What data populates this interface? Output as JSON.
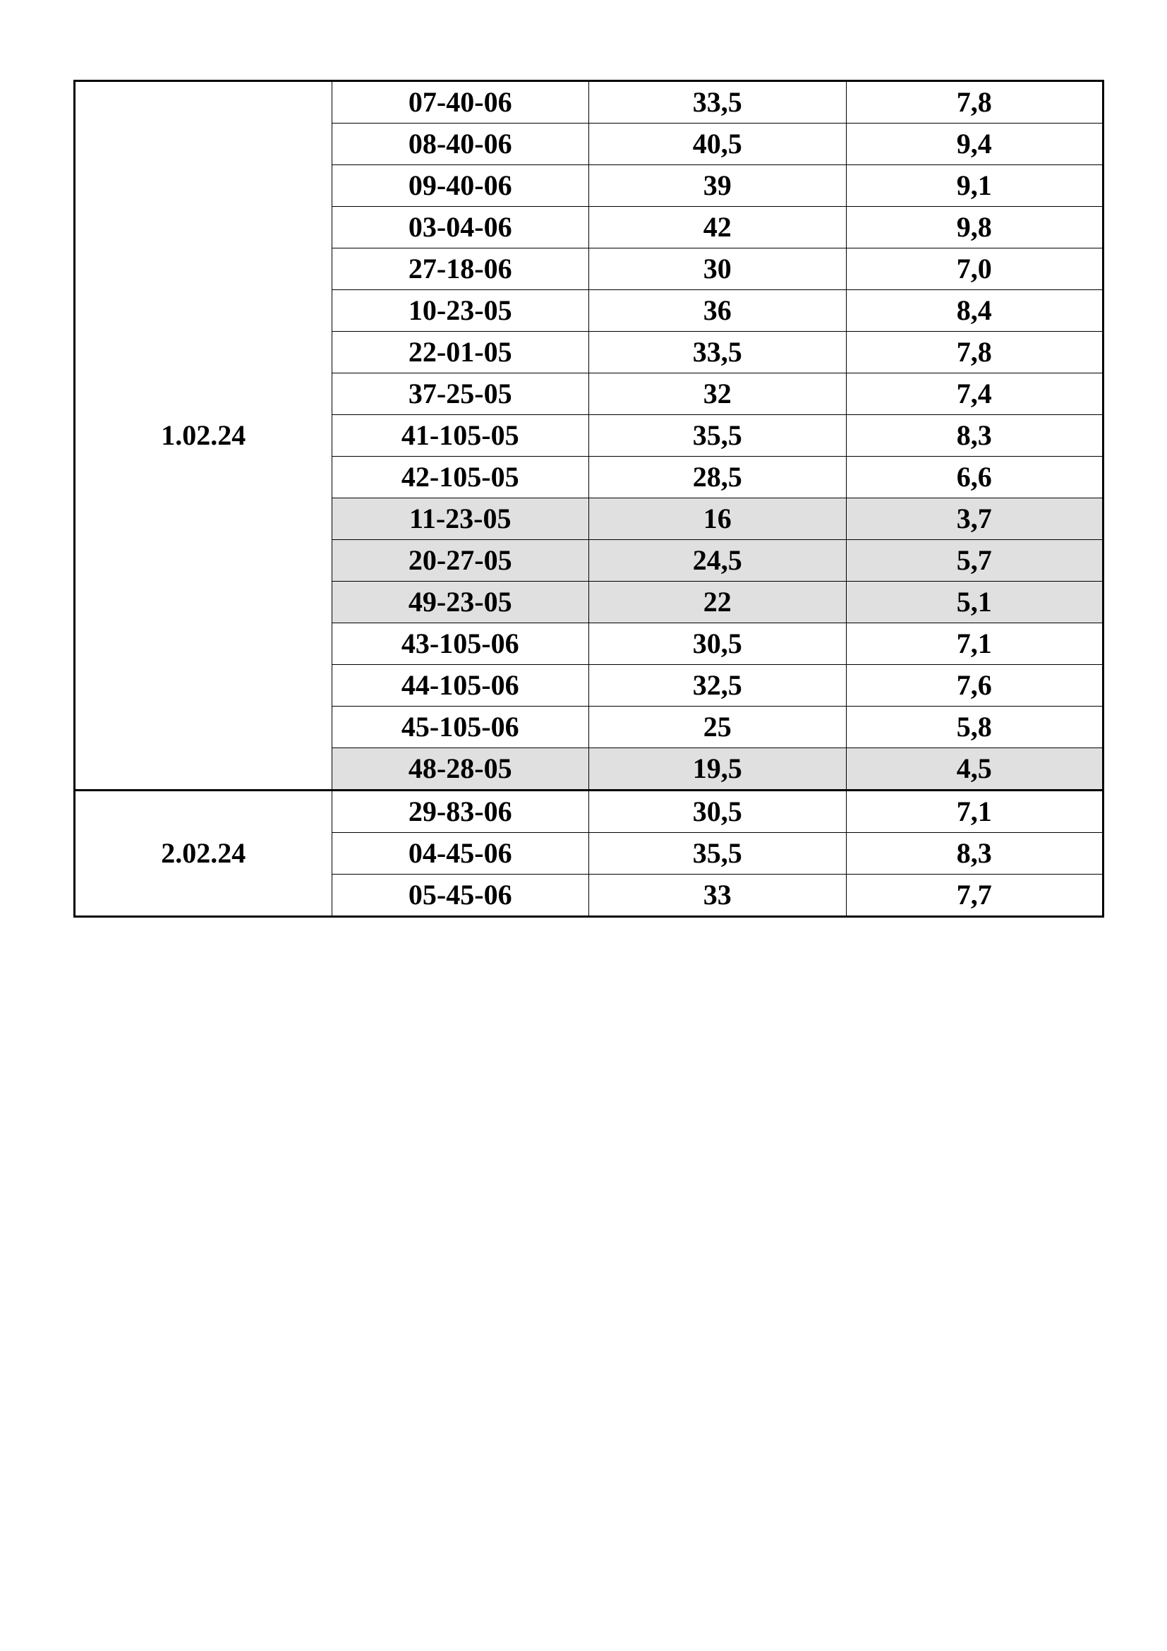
{
  "colors": {
    "shaded_row": "#e0e0e0",
    "border": "#000000"
  },
  "groups": [
    {
      "date": "1.02.24",
      "rows": [
        {
          "code": "07-40-06",
          "value": "33,5",
          "ratio": "7,8",
          "shaded": false
        },
        {
          "code": "08-40-06",
          "value": "40,5",
          "ratio": "9,4",
          "shaded": false
        },
        {
          "code": "09-40-06",
          "value": "39",
          "ratio": "9,1",
          "shaded": false
        },
        {
          "code": "03-04-06",
          "value": "42",
          "ratio": "9,8",
          "shaded": false
        },
        {
          "code": "27-18-06",
          "value": "30",
          "ratio": "7,0",
          "shaded": false
        },
        {
          "code": "10-23-05",
          "value": "36",
          "ratio": "8,4",
          "shaded": false
        },
        {
          "code": "22-01-05",
          "value": "33,5",
          "ratio": "7,8",
          "shaded": false
        },
        {
          "code": "37-25-05",
          "value": "32",
          "ratio": "7,4",
          "shaded": false
        },
        {
          "code": "41-105-05",
          "value": "35,5",
          "ratio": "8,3",
          "shaded": false
        },
        {
          "code": "42-105-05",
          "value": "28,5",
          "ratio": "6,6",
          "shaded": false
        },
        {
          "code": "11-23-05",
          "value": "16",
          "ratio": "3,7",
          "shaded": true
        },
        {
          "code": "20-27-05",
          "value": "24,5",
          "ratio": "5,7",
          "shaded": true
        },
        {
          "code": "49-23-05",
          "value": "22",
          "ratio": "5,1",
          "shaded": true
        },
        {
          "code": "43-105-06",
          "value": "30,5",
          "ratio": "7,1",
          "shaded": false
        },
        {
          "code": "44-105-06",
          "value": "32,5",
          "ratio": "7,6",
          "shaded": false
        },
        {
          "code": "45-105-06",
          "value": "25",
          "ratio": "5,8",
          "shaded": false
        },
        {
          "code": "48-28-05",
          "value": "19,5",
          "ratio": "4,5",
          "shaded": true
        }
      ]
    },
    {
      "date": "2.02.24",
      "rows": [
        {
          "code": "29-83-06",
          "value": "30,5",
          "ratio": "7,1",
          "shaded": false
        },
        {
          "code": "04-45-06",
          "value": "35,5",
          "ratio": "8,3",
          "shaded": false
        },
        {
          "code": "05-45-06",
          "value": "33",
          "ratio": "7,7",
          "shaded": false
        }
      ]
    }
  ]
}
